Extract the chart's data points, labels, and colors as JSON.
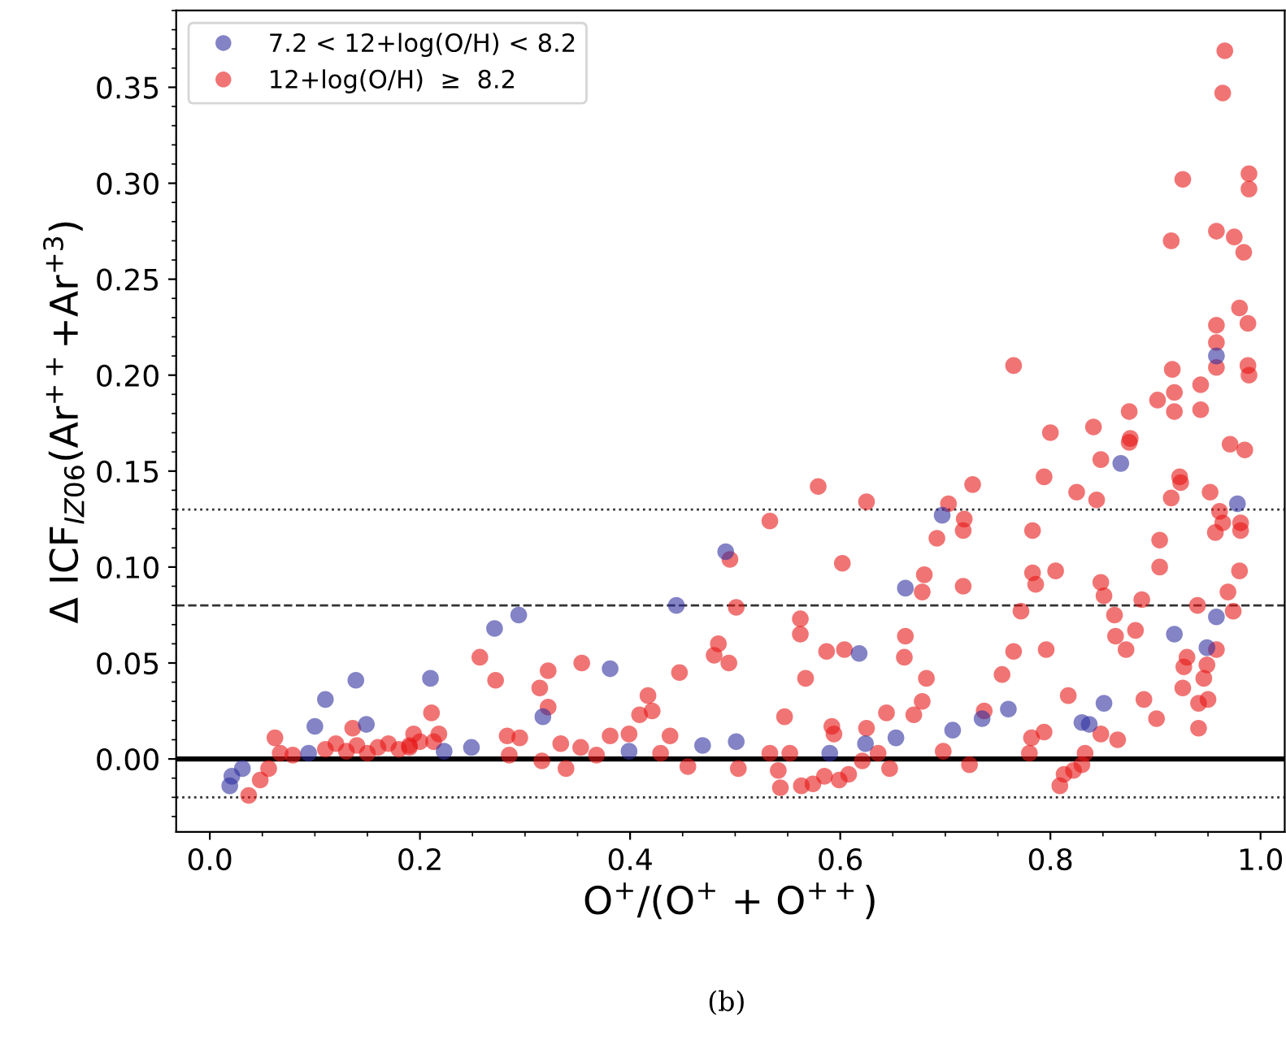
{
  "chart_data": {
    "type": "scatter",
    "xlabel": "O$^{+}$/(O$^{+}$ + O$^{++}$)",
    "ylabel": "Δ ICF$_{IZ06}$(Ar$^{++}$+Ar$^{+3}$)",
    "annotations": [
      "(b)"
    ],
    "xlim": [
      -0.032,
      1.023
    ],
    "ylim": [
      -0.038,
      0.39
    ],
    "xticks": [
      {
        "value": 0,
        "label": "0.0"
      },
      0.2,
      0.4,
      0.6,
      0.8,
      {
        "value": 1,
        "label": "1.0"
      }
    ],
    "yticks": [
      {
        "value": 0,
        "label": "0.00"
      },
      {
        "value": 0.05,
        "label": "0.05"
      },
      {
        "value": 0.1,
        "label": "0.10"
      },
      {
        "value": 0.15,
        "label": "0.15"
      },
      {
        "value": 0.2,
        "label": "0.20"
      },
      {
        "value": 0.25,
        "label": "0.25"
      },
      {
        "value": 0.3,
        "label": "0.30"
      },
      {
        "value": 0.35,
        "label": "0.35"
      }
    ],
    "grid": false,
    "legend": "top left",
    "marker": "circle",
    "ref_lines": [
      {
        "axis": "y",
        "value": 0,
        "line_style": "solid",
        "color": "#000000"
      },
      {
        "axis": "y",
        "value": 0.08,
        "line_style": "dashed",
        "color": "#333333"
      },
      {
        "axis": "y",
        "value": 0.13,
        "line_style": "dotted",
        "color": "#333333"
      },
      {
        "axis": "y",
        "value": -0.02,
        "line_style": "dotted",
        "color": "#333333"
      }
    ],
    "series": [
      {
        "name": "7.2 < 12+log(O/H) < 8.2",
        "color": "#3030a0",
        "x": [
          0.019,
          0.021,
          0.031,
          0.094,
          0.1,
          0.11,
          0.139,
          0.149,
          0.21,
          0.223,
          0.249,
          0.271,
          0.294,
          0.317,
          0.381,
          0.399,
          0.444,
          0.469,
          0.491,
          0.501,
          0.59,
          0.618,
          0.624,
          0.653,
          0.662,
          0.697,
          0.707,
          0.735,
          0.76,
          0.83,
          0.837,
          0.851,
          0.867,
          0.918,
          0.949,
          0.958,
          0.978,
          0.958
        ],
        "values": [
          -0.014,
          -0.009,
          -0.005,
          0.003,
          0.017,
          0.031,
          0.041,
          0.018,
          0.042,
          0.004,
          0.006,
          0.068,
          0.075,
          0.022,
          0.047,
          0.004,
          0.08,
          0.007,
          0.108,
          0.009,
          0.003,
          0.055,
          0.008,
          0.011,
          0.089,
          0.127,
          0.015,
          0.021,
          0.026,
          0.019,
          0.018,
          0.029,
          0.154,
          0.065,
          0.058,
          0.074,
          0.133,
          0.21
        ]
      },
      {
        "name": "12+log(O/H)  ≥  8.2",
        "color": "#e81818",
        "x": [
          0.037,
          0.048,
          0.056,
          0.062,
          0.067,
          0.079,
          0.11,
          0.12,
          0.13,
          0.14,
          0.15,
          0.16,
          0.17,
          0.18,
          0.19,
          0.2,
          0.136,
          0.211,
          0.218,
          0.194,
          0.213,
          0.19,
          0.257,
          0.272,
          0.283,
          0.295,
          0.285,
          0.314,
          0.322,
          0.322,
          0.334,
          0.339,
          0.354,
          0.353,
          0.316,
          0.368,
          0.381,
          0.399,
          0.409,
          0.417,
          0.421,
          0.447,
          0.438,
          0.455,
          0.429,
          0.48,
          0.484,
          0.494,
          0.495,
          0.501,
          0.503,
          0.533,
          0.533,
          0.543,
          0.541,
          0.547,
          0.552,
          0.562,
          0.562,
          0.567,
          0.563,
          0.574,
          0.579,
          0.585,
          0.587,
          0.592,
          0.594,
          0.599,
          0.602,
          0.604,
          0.608,
          0.621,
          0.625,
          0.625,
          0.636,
          0.644,
          0.647,
          0.662,
          0.661,
          0.678,
          0.68,
          0.682,
          0.678,
          0.67,
          0.692,
          0.698,
          0.703,
          0.718,
          0.717,
          0.717,
          0.723,
          0.726,
          0.737,
          0.754,
          0.765,
          0.772,
          0.782,
          0.78,
          0.783,
          0.783,
          0.786,
          0.794,
          0.794,
          0.796,
          0.8,
          0.805,
          0.809,
          0.817,
          0.813,
          0.822,
          0.825,
          0.83,
          0.833,
          0.841,
          0.844,
          0.848,
          0.848,
          0.848,
          0.851,
          0.861,
          0.862,
          0.864,
          0.872,
          0.875,
          0.876,
          0.881,
          0.887,
          0.889,
          0.901,
          0.904,
          0.904,
          0.915,
          0.918,
          0.923,
          0.924,
          0.926,
          0.927,
          0.93,
          0.94,
          0.941,
          0.941,
          0.943,
          0.946,
          0.949,
          0.95,
          0.952,
          0.957,
          0.958,
          0.961,
          0.964,
          0.969,
          0.971,
          0.974,
          0.98,
          0.981,
          0.981,
          0.985,
          0.966,
          0.964,
          0.989,
          0.926,
          0.915,
          0.958,
          0.975,
          0.984,
          0.98,
          0.988,
          0.958,
          0.958,
          0.958,
          0.988,
          0.989,
          0.765,
          0.916,
          0.943,
          0.902,
          0.918,
          0.875,
          0.989
        ],
        "values": [
          -0.019,
          -0.011,
          -0.005,
          0.011,
          0.003,
          0.002,
          0.005,
          0.008,
          0.004,
          0.007,
          0.003,
          0.006,
          0.008,
          0.005,
          0.007,
          0.009,
          0.016,
          0.024,
          0.013,
          0.013,
          0.009,
          0.006,
          0.053,
          0.041,
          0.012,
          0.011,
          0.002,
          0.037,
          0.046,
          0.027,
          0.008,
          -0.005,
          0.05,
          0.006,
          -0.001,
          0.002,
          0.012,
          0.013,
          0.023,
          0.033,
          0.025,
          0.045,
          0.012,
          -0.004,
          0.003,
          0.054,
          0.06,
          0.05,
          0.104,
          0.079,
          -0.005,
          0.124,
          0.003,
          -0.015,
          -0.006,
          0.022,
          0.003,
          0.073,
          0.065,
          0.042,
          -0.014,
          -0.013,
          0.142,
          -0.009,
          0.056,
          0.017,
          0.013,
          -0.011,
          0.102,
          0.057,
          -0.008,
          -0.001,
          0.134,
          0.016,
          0.003,
          0.024,
          -0.005,
          0.064,
          0.053,
          0.087,
          0.096,
          0.042,
          0.03,
          0.023,
          0.115,
          0.004,
          0.133,
          0.125,
          0.119,
          0.09,
          -0.003,
          0.143,
          0.025,
          0.044,
          0.056,
          0.077,
          0.011,
          0.003,
          0.119,
          0.097,
          0.091,
          0.014,
          0.147,
          0.057,
          0.17,
          0.098,
          -0.014,
          0.033,
          -0.008,
          -0.006,
          0.139,
          -0.003,
          0.003,
          0.173,
          0.135,
          0.156,
          0.092,
          0.013,
          0.085,
          0.075,
          0.064,
          0.01,
          0.057,
          0.181,
          0.167,
          0.067,
          0.083,
          0.031,
          0.021,
          0.114,
          0.1,
          0.136,
          0.181,
          0.147,
          0.144,
          0.037,
          0.048,
          0.053,
          0.08,
          0.029,
          0.016,
          0.182,
          0.042,
          0.049,
          0.031,
          0.139,
          0.118,
          0.057,
          0.129,
          0.123,
          0.087,
          0.164,
          0.077,
          0.098,
          0.123,
          0.119,
          0.161,
          0.369,
          0.347,
          0.297,
          0.302,
          0.27,
          0.275,
          0.272,
          0.264,
          0.235,
          0.227,
          0.226,
          0.217,
          0.204,
          0.205,
          0.2,
          0.205,
          0.203,
          0.195,
          0.187,
          0.191,
          0.165,
          0.305
        ]
      }
    ]
  }
}
